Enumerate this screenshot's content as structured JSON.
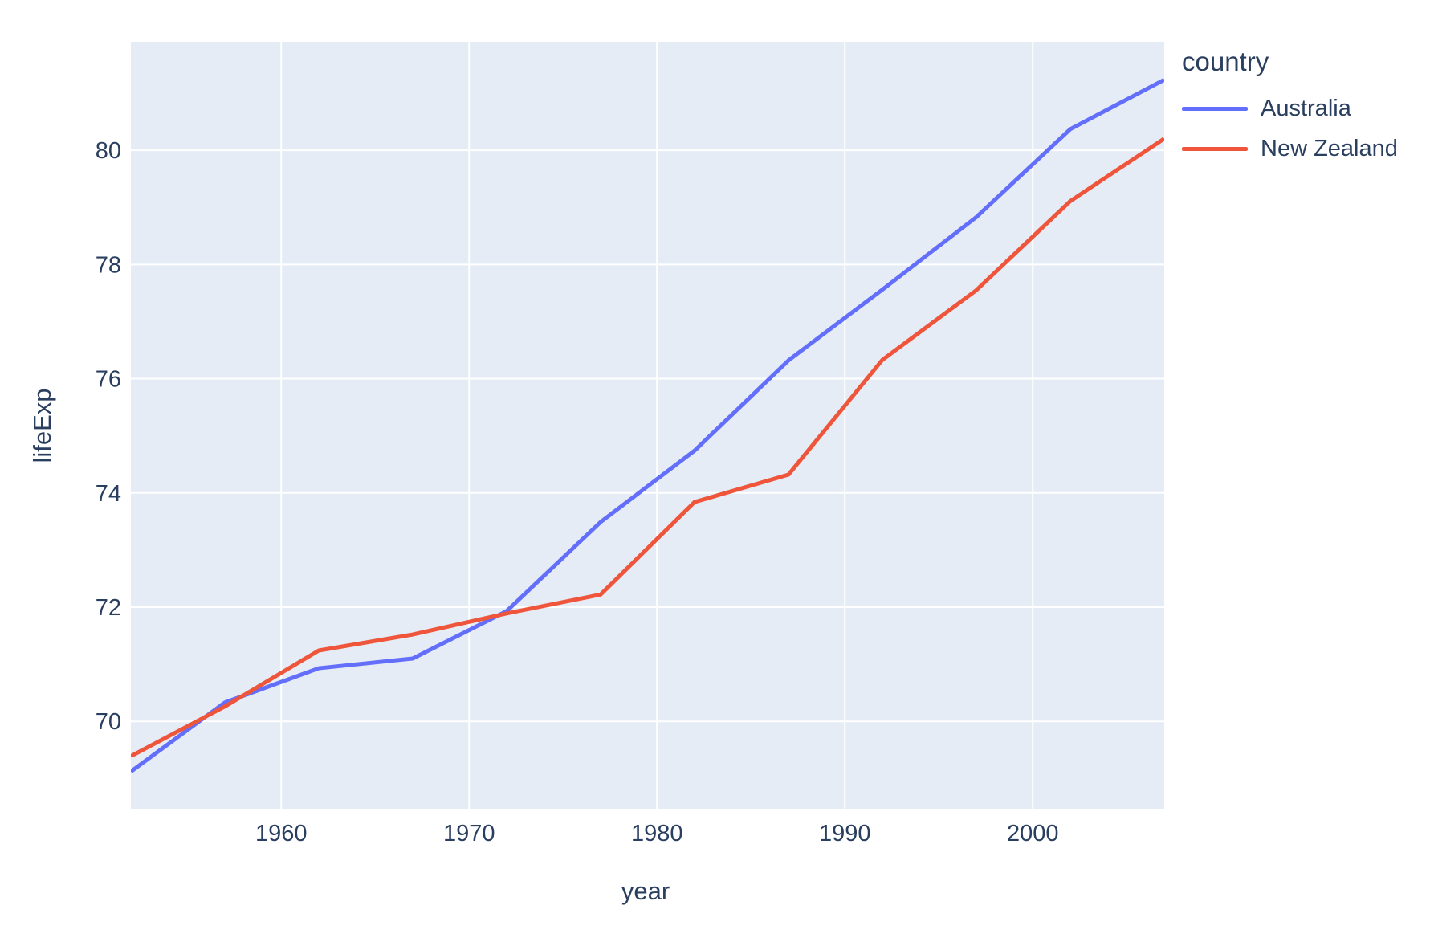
{
  "chart_data": {
    "type": "line",
    "title": "",
    "xlabel": "year",
    "ylabel": "lifeExp",
    "legend_title": "country",
    "legend_position": "right",
    "grid": true,
    "x": [
      1952,
      1957,
      1962,
      1967,
      1972,
      1977,
      1982,
      1987,
      1992,
      1997,
      2002,
      2007
    ],
    "series": [
      {
        "name": "Australia",
        "color": "#636EFA",
        "values": [
          69.12,
          70.33,
          70.93,
          71.1,
          71.93,
          73.49,
          74.74,
          76.32,
          77.56,
          78.83,
          80.37,
          81.235
        ]
      },
      {
        "name": "New Zealand",
        "color": "#EF553B",
        "values": [
          69.39,
          70.26,
          71.24,
          71.52,
          71.89,
          72.22,
          73.84,
          74.32,
          76.33,
          77.55,
          79.11,
          80.204
        ]
      }
    ],
    "xlim": [
      1952,
      2007
    ],
    "ylim": [
      68.47,
      81.9
    ],
    "x_ticks": [
      1960,
      1970,
      1980,
      1990,
      2000
    ],
    "y_ticks": [
      70,
      72,
      74,
      76,
      78,
      80
    ],
    "colors": {
      "plot_bg": "#E5ECF6",
      "grid": "#FFFFFF",
      "font": "#2A3F5F",
      "paper_bg": "#FFFFFF"
    }
  }
}
